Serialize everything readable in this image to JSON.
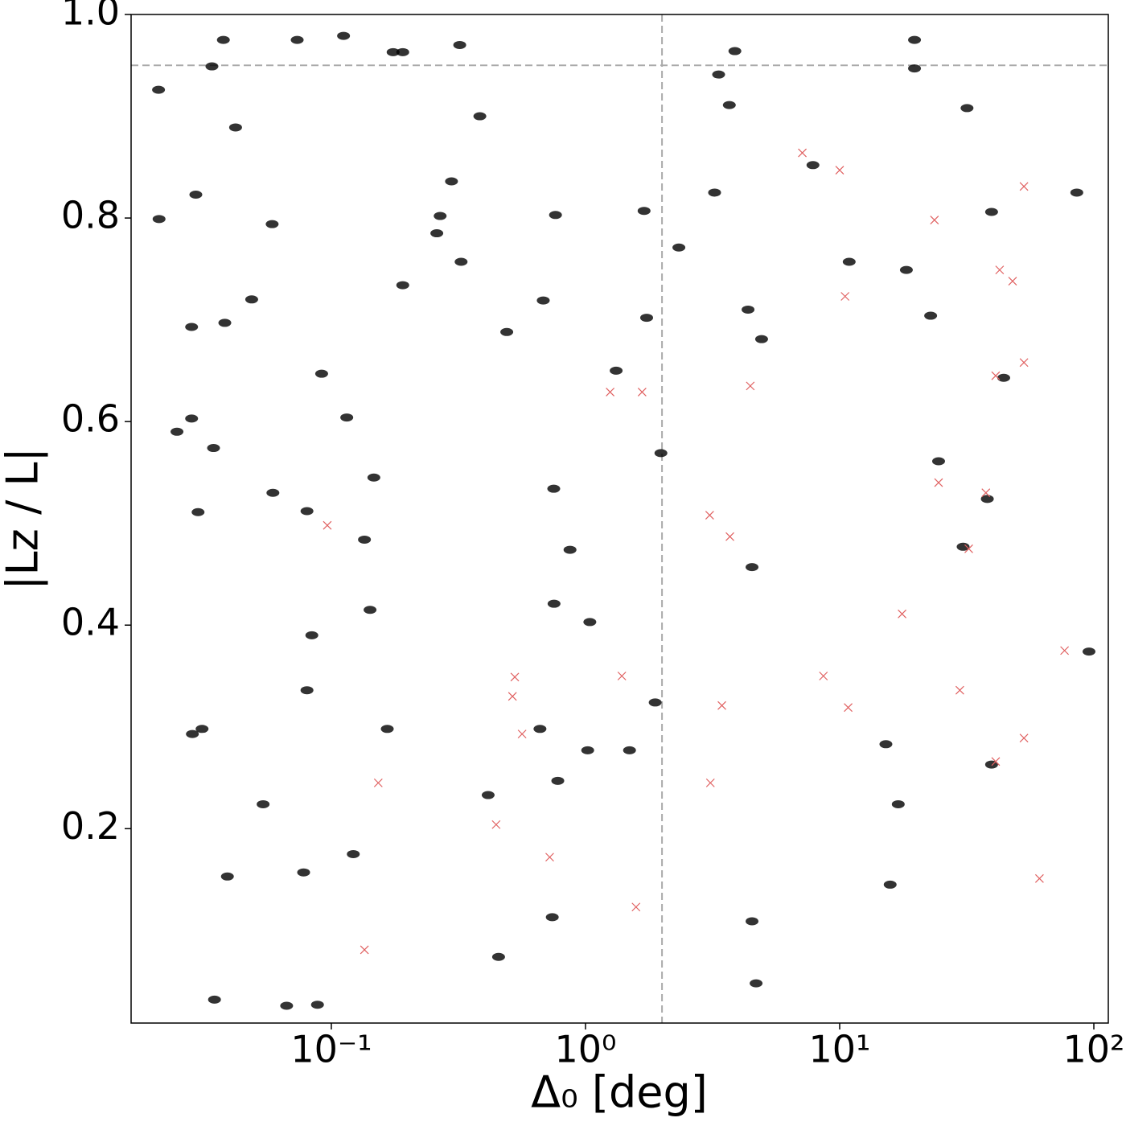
{
  "chart_data": {
    "type": "scatter",
    "xlabel": "Δ₀ [deg]",
    "ylabel": "|Lz / L|",
    "xscale": "log",
    "xlim": [
      0.0163,
      114
    ],
    "ylim": [
      0.009,
      1.0
    ],
    "xticks": [
      {
        "value": 0.1,
        "label": "10⁻¹"
      },
      {
        "value": 1,
        "label": "10⁰"
      },
      {
        "value": 10,
        "label": "10¹"
      },
      {
        "value": 100,
        "label": "10²"
      }
    ],
    "yticks": [
      0.2,
      0.4,
      0.6,
      0.8,
      {
        "value": 1.0,
        "label": "1.0"
      }
    ],
    "vlines": [
      2
    ],
    "hlines": [
      0.95
    ],
    "ref_color": "#aaaaaa",
    "grid": false,
    "series": [
      {
        "color": "#000000",
        "marker": "o",
        "x": [
          0.0209,
          0.0376,
          0.0339,
          0.0734,
          0.1117,
          0.175,
          0.191,
          0.32,
          0.042,
          0.0293,
          0.0585,
          0.021,
          0.0282,
          0.0381,
          0.0486,
          0.0282,
          0.0247,
          0.0344,
          0.0802,
          0.0589,
          0.0299,
          0.0838,
          0.0802,
          0.142,
          0.166,
          0.0882,
          0.0667,
          0.0347,
          0.039,
          0.0778,
          0.0539,
          0.0284,
          0.031,
          0.122,
          0.135,
          0.147,
          0.0916,
          0.115,
          0.191,
          0.26,
          0.268,
          0.297,
          0.324,
          0.384,
          0.49,
          0.682,
          0.762,
          0.869,
          0.75,
          0.752,
          0.778,
          1.04,
          1.02,
          1.49,
          0.414,
          0.455,
          0.74,
          0.662,
          1.98,
          1.7,
          2.33,
          1.32,
          1.74,
          1.88,
          3.68,
          3.22,
          4.52,
          4.93,
          4.52,
          4.69,
          4.36,
          3.34,
          3.87,
          10.9,
          18.3,
          22.8,
          39.6,
          31.7,
          19.7,
          7.85,
          24.5,
          38.1,
          30.6,
          39.6,
          17.0,
          95.7,
          15.8,
          85.7,
          44.2,
          15.2,
          19.7
        ],
        "values": [
          0.926,
          0.975,
          0.949,
          0.975,
          0.979,
          0.963,
          0.963,
          0.97,
          0.889,
          0.823,
          0.794,
          0.799,
          0.693,
          0.697,
          0.72,
          0.603,
          0.59,
          0.574,
          0.512,
          0.53,
          0.511,
          0.39,
          0.336,
          0.415,
          0.298,
          0.027,
          0.026,
          0.032,
          0.153,
          0.157,
          0.224,
          0.293,
          0.298,
          0.175,
          0.484,
          0.545,
          0.647,
          0.604,
          0.734,
          0.785,
          0.802,
          0.836,
          0.757,
          0.9,
          0.688,
          0.719,
          0.803,
          0.474,
          0.534,
          0.421,
          0.247,
          0.403,
          0.277,
          0.277,
          0.233,
          0.074,
          0.113,
          0.298,
          0.569,
          0.807,
          0.771,
          0.65,
          0.702,
          0.324,
          0.911,
          0.825,
          0.457,
          0.681,
          0.109,
          0.048,
          0.71,
          0.941,
          0.964,
          0.757,
          0.749,
          0.704,
          0.806,
          0.908,
          0.975,
          0.852,
          0.561,
          0.524,
          0.477,
          0.263,
          0.224,
          0.374,
          0.145,
          0.825,
          0.643,
          0.283,
          0.947
        ]
      },
      {
        "color": "#e06060",
        "marker": "x",
        "x": [
          3.08,
          3.7,
          17.6,
          76.7,
          8.63,
          10.8,
          29.7,
          41.1,
          53.1,
          61.1,
          3.1,
          3.44,
          0.723,
          0.445,
          24.5,
          37.6,
          32.2,
          10.5,
          42.6,
          47.9,
          53.1,
          23.6,
          41.1,
          53.1,
          4.45,
          1.67,
          1.25,
          0.563,
          1.58,
          0.135,
          0.0964,
          0.153,
          1.39,
          0.527,
          0.516,
          7.13,
          10.0
        ],
        "values": [
          0.508,
          0.487,
          0.411,
          0.375,
          0.35,
          0.319,
          0.336,
          0.266,
          0.289,
          0.151,
          0.245,
          0.321,
          0.172,
          0.204,
          0.54,
          0.53,
          0.475,
          0.723,
          0.749,
          0.738,
          0.831,
          0.798,
          0.645,
          0.658,
          0.635,
          0.629,
          0.629,
          0.293,
          0.123,
          0.081,
          0.498,
          0.245,
          0.35,
          0.349,
          0.33,
          0.864,
          0.847
        ]
      }
    ]
  }
}
